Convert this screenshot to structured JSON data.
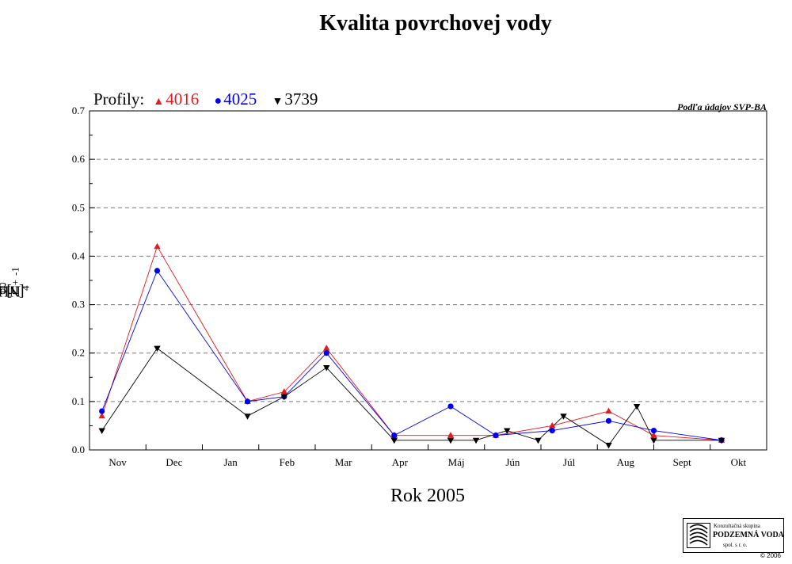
{
  "chart_data": {
    "type": "line",
    "title": "Kvalita povrchovej vody",
    "legend_title": "Profily:",
    "credit": "Podľa údajov SVP-BA",
    "xlabel": "Rok  2005",
    "ylabel_base": "NH",
    "ylabel_sub": "4",
    "ylabel_sup": "+",
    "ylabel_unit": "[mgl",
    "ylabel_unit_sup": "-1",
    "ylabel_close": "]",
    "categories": [
      "Nov",
      "Dec",
      "Jan",
      "Feb",
      "Mar",
      "Apr",
      "Máj",
      "Jún",
      "Júl",
      "Aug",
      "Sept",
      "Okt"
    ],
    "ylim": [
      0,
      0.7
    ],
    "yticks": [
      0.0,
      0.1,
      0.2,
      0.3,
      0.4,
      0.5,
      0.6,
      0.7
    ],
    "ytick_labels": [
      "0.0",
      "0.1",
      "0.2",
      "0.3",
      "0.4",
      "0.5",
      "0.6",
      "0.7"
    ],
    "grid": "horizontal-dashed",
    "legend_position": "top-left",
    "series": [
      {
        "name": "4016",
        "color": "#e41a1c",
        "marker": "triangle-up",
        "points": [
          {
            "x": 0.22,
            "y": 0.07
          },
          {
            "x": 1.2,
            "y": 0.42
          },
          {
            "x": 2.8,
            "y": 0.1
          },
          {
            "x": 3.45,
            "y": 0.12
          },
          {
            "x": 4.2,
            "y": 0.21
          },
          {
            "x": 5.4,
            "y": 0.03
          },
          {
            "x": 6.4,
            "y": 0.03
          },
          {
            "x": 7.2,
            "y": 0.03
          },
          {
            "x": 8.2,
            "y": 0.05
          },
          {
            "x": 9.2,
            "y": 0.08
          },
          {
            "x": 10.0,
            "y": 0.03
          },
          {
            "x": 11.2,
            "y": 0.02
          }
        ]
      },
      {
        "name": "4025",
        "color": "#0000ee",
        "marker": "circle",
        "points": [
          {
            "x": 0.22,
            "y": 0.08
          },
          {
            "x": 1.2,
            "y": 0.37
          },
          {
            "x": 2.8,
            "y": 0.1
          },
          {
            "x": 3.45,
            "y": 0.11
          },
          {
            "x": 4.2,
            "y": 0.2
          },
          {
            "x": 5.4,
            "y": 0.03
          },
          {
            "x": 6.4,
            "y": 0.09
          },
          {
            "x": 7.2,
            "y": 0.03
          },
          {
            "x": 8.2,
            "y": 0.04
          },
          {
            "x": 9.2,
            "y": 0.06
          },
          {
            "x": 10.0,
            "y": 0.04
          },
          {
            "x": 11.2,
            "y": 0.02
          }
        ]
      },
      {
        "name": "3739",
        "color": "#000000",
        "marker": "triangle-down",
        "points": [
          {
            "x": 0.22,
            "y": 0.04
          },
          {
            "x": 1.2,
            "y": 0.21
          },
          {
            "x": 2.8,
            "y": 0.07
          },
          {
            "x": 3.45,
            "y": 0.11
          },
          {
            "x": 4.2,
            "y": 0.17
          },
          {
            "x": 5.4,
            "y": 0.02
          },
          {
            "x": 6.4,
            "y": 0.02
          },
          {
            "x": 6.85,
            "y": 0.02
          },
          {
            "x": 7.4,
            "y": 0.04
          },
          {
            "x": 7.95,
            "y": 0.02
          },
          {
            "x": 8.4,
            "y": 0.07
          },
          {
            "x": 9.2,
            "y": 0.01
          },
          {
            "x": 9.7,
            "y": 0.09
          },
          {
            "x": 10.0,
            "y": 0.02
          },
          {
            "x": 11.2,
            "y": 0.02
          }
        ]
      }
    ]
  },
  "logo": {
    "line1": "Konzultačná skupina",
    "line2": "PODZEMNÁ VODA",
    "line3": "spol. s r. o.",
    "copyright": "© 2006"
  }
}
